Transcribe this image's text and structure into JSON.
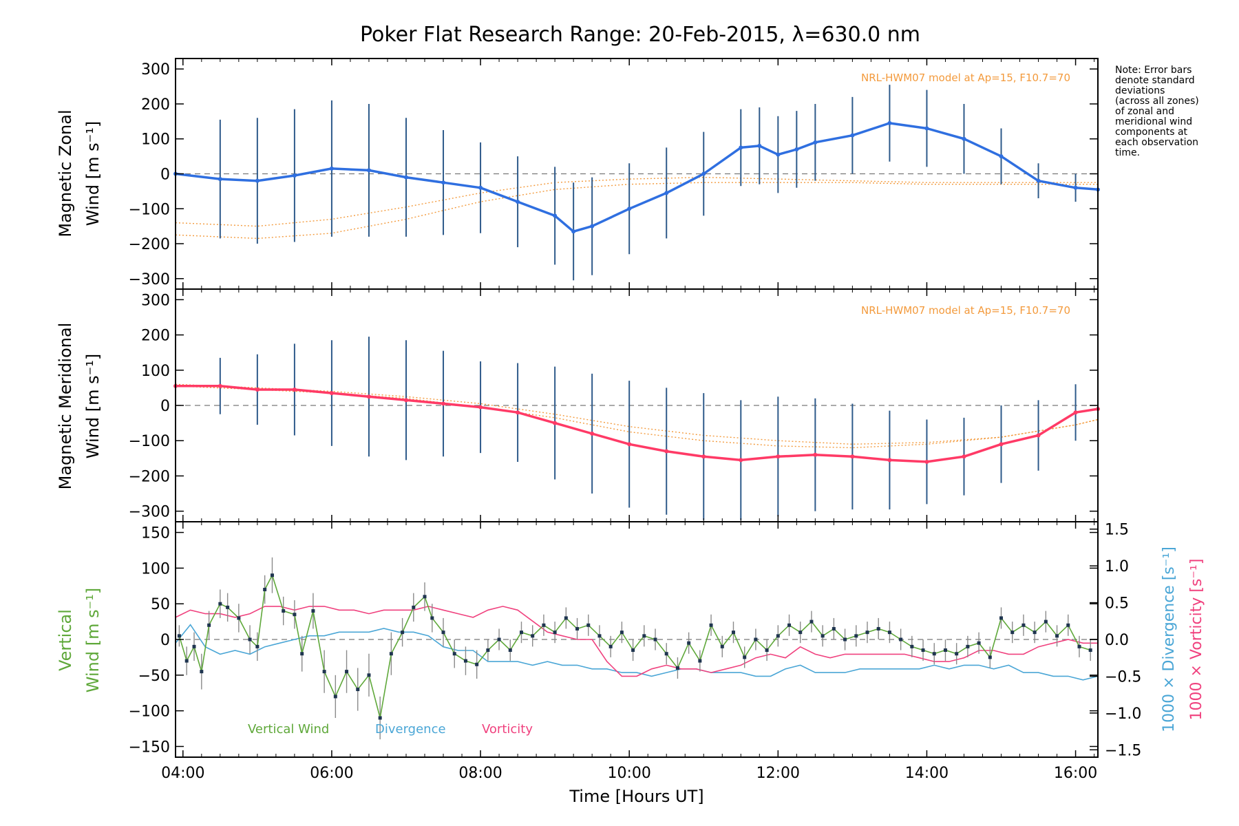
{
  "figure": {
    "title": "Poker Flat Research Range: 20-Feb-2015, λ=630.0 nm",
    "xlabel": "Time [Hours UT]",
    "note_lines": [
      "Note: Error bars",
      "denote standard",
      "deviations",
      "(across all zones)",
      "of zonal and",
      "meridional wind",
      "components at",
      "each observation",
      "time."
    ],
    "colors": {
      "zonal_line": "#2f6fe0",
      "meridional_line": "#ff3a66",
      "vertical": "#5fa83a",
      "divergence": "#4aa6d6",
      "vorticity": "#f0417e",
      "errorbar": "#2e5a8a",
      "model": "#f39a3c",
      "scatter": "#9a9ae0"
    }
  },
  "chart_data": [
    {
      "type": "line",
      "panel": "zonal",
      "ylabel_line1": "Magnetic Zonal",
      "ylabel_line2": "Wind [m s⁻¹]",
      "ylim": [
        -330,
        330
      ],
      "yticks": [
        -300,
        -200,
        -100,
        0,
        100,
        200,
        300
      ],
      "xlim": [
        3.9,
        16.3
      ],
      "xticks": [
        4,
        6,
        8,
        10,
        12,
        14,
        16
      ],
      "xticklabels": [
        "04:00",
        "06:00",
        "08:00",
        "10:00",
        "12:00",
        "14:00",
        "16:00"
      ],
      "model_label": "NRL-HWM07 model at Ap=15, F10.7=70",
      "series": [
        {
          "x": [
            3.9,
            4.5,
            5.0,
            5.5,
            6.0,
            6.5,
            7.0,
            7.5,
            8.0,
            8.5,
            9.0,
            9.25,
            9.5,
            10.0,
            10.5,
            11.0,
            11.5,
            11.75,
            12.0,
            12.25,
            12.5,
            13.0,
            13.5,
            14.0,
            14.5,
            15.0,
            15.5,
            16.0,
            16.3
          ],
          "y": [
            0,
            -15,
            -20,
            -5,
            15,
            10,
            -10,
            -25,
            -40,
            -80,
            -120,
            -165,
            -150,
            -100,
            -55,
            0,
            75,
            80,
            55,
            70,
            90,
            110,
            145,
            130,
            100,
            50,
            -20,
            -40,
            -45
          ],
          "err": [
            150,
            170,
            180,
            190,
            195,
            190,
            170,
            150,
            130,
            130,
            140,
            140,
            140,
            130,
            130,
            120,
            110,
            110,
            110,
            110,
            110,
            110,
            110,
            110,
            100,
            80,
            50,
            40,
            40
          ]
        }
      ],
      "model_curves": [
        {
          "x": [
            3.9,
            5,
            6,
            7,
            8,
            9,
            10,
            11,
            12,
            13,
            14,
            15,
            16,
            16.3
          ],
          "y": [
            -175,
            -185,
            -170,
            -130,
            -80,
            -45,
            -30,
            -25,
            -25,
            -25,
            -30,
            -30,
            -30,
            -30
          ]
        },
        {
          "x": [
            3.9,
            5,
            6,
            7,
            8,
            9,
            10,
            11,
            12,
            13,
            14,
            15,
            16,
            16.3
          ],
          "y": [
            -140,
            -150,
            -130,
            -95,
            -55,
            -25,
            -15,
            -10,
            -15,
            -20,
            -25,
            -25,
            -25,
            -25
          ]
        }
      ]
    },
    {
      "type": "line",
      "panel": "meridional",
      "ylabel_line1": "Magnetic Meridional",
      "ylabel_line2": "Wind [m s⁻¹]",
      "ylim": [
        -330,
        330
      ],
      "yticks": [
        -300,
        -200,
        -100,
        0,
        100,
        200,
        300
      ],
      "model_label": "NRL-HWM07 model at Ap=15, F10.7=70",
      "series": [
        {
          "x": [
            3.9,
            4.5,
            5.0,
            5.5,
            6.0,
            6.5,
            7.0,
            7.5,
            8.0,
            8.5,
            9.0,
            9.5,
            10.0,
            10.5,
            11.0,
            11.5,
            12.0,
            12.5,
            13.0,
            13.5,
            14.0,
            14.5,
            15.0,
            15.5,
            16.0,
            16.3
          ],
          "y": [
            55,
            55,
            45,
            45,
            35,
            25,
            15,
            5,
            -5,
            -20,
            -50,
            -80,
            -110,
            -130,
            -145,
            -155,
            -145,
            -140,
            -145,
            -155,
            -160,
            -145,
            -110,
            -85,
            -20,
            -10
          ],
          "err": [
            70,
            80,
            100,
            130,
            150,
            170,
            170,
            150,
            130,
            140,
            160,
            170,
            180,
            180,
            180,
            170,
            170,
            160,
            150,
            140,
            120,
            110,
            110,
            100,
            80,
            70
          ]
        }
      ],
      "model_curves": [
        {
          "x": [
            3.9,
            5,
            6,
            7,
            8,
            9,
            10,
            11,
            12,
            13,
            14,
            15,
            16,
            16.3
          ],
          "y": [
            60,
            50,
            40,
            25,
            5,
            -25,
            -60,
            -85,
            -100,
            -110,
            -105,
            -90,
            -55,
            -40
          ]
        },
        {
          "x": [
            3.9,
            5,
            6,
            7,
            8,
            9,
            10,
            11,
            12,
            13,
            14,
            15,
            16,
            16.3
          ],
          "y": [
            55,
            45,
            35,
            20,
            -5,
            -35,
            -75,
            -100,
            -115,
            -120,
            -110,
            -90,
            -55,
            -40
          ]
        }
      ]
    },
    {
      "type": "line",
      "panel": "vertical",
      "ylabel_line1": "Vertical",
      "ylabel_line2": "Wind [m s⁻¹]",
      "ylim": [
        -165,
        165
      ],
      "yticks": [
        -150,
        -100,
        -50,
        0,
        50,
        100,
        150
      ],
      "y2label_line1": "1000 × Divergence [s⁻¹]",
      "y2label_line2": "1000 × Vorticity [s⁻¹]",
      "y2lim": [
        -1.6,
        1.6
      ],
      "y2ticks": [
        -1.5,
        -1.0,
        -0.5,
        0.0,
        0.5,
        1.0,
        1.5
      ],
      "y2ticklabels": [
        "−1.5",
        "−1.0",
        "−0.5",
        "0.0",
        "0.5",
        "1.0",
        "1.5"
      ],
      "legend": [
        "Vertical Wind",
        "Divergence",
        "Vorticity"
      ],
      "series": [
        {
          "name": "Vertical Wind",
          "x": [
            3.95,
            4.05,
            4.15,
            4.25,
            4.35,
            4.5,
            4.6,
            4.75,
            4.9,
            5.0,
            5.1,
            5.2,
            5.35,
            5.5,
            5.6,
            5.75,
            5.9,
            6.05,
            6.2,
            6.35,
            6.5,
            6.65,
            6.8,
            6.95,
            7.1,
            7.25,
            7.35,
            7.5,
            7.65,
            7.8,
            7.95,
            8.1,
            8.25,
            8.4,
            8.55,
            8.7,
            8.85,
            9.0,
            9.15,
            9.3,
            9.45,
            9.6,
            9.75,
            9.9,
            10.05,
            10.2,
            10.35,
            10.5,
            10.65,
            10.8,
            10.95,
            11.1,
            11.25,
            11.4,
            11.55,
            11.7,
            11.85,
            12.0,
            12.15,
            12.3,
            12.45,
            12.6,
            12.75,
            12.9,
            13.05,
            13.2,
            13.35,
            13.5,
            13.65,
            13.8,
            13.95,
            14.1,
            14.25,
            14.4,
            14.55,
            14.7,
            14.85,
            15.0,
            15.15,
            15.3,
            15.45,
            15.6,
            15.75,
            15.9,
            16.05,
            16.2
          ],
          "y": [
            5,
            -30,
            -10,
            -45,
            20,
            50,
            45,
            30,
            0,
            -10,
            70,
            90,
            40,
            35,
            -20,
            40,
            -45,
            -80,
            -45,
            -70,
            -50,
            -110,
            -20,
            10,
            45,
            60,
            30,
            10,
            -20,
            -30,
            -35,
            -15,
            0,
            -15,
            10,
            5,
            20,
            10,
            30,
            15,
            20,
            5,
            -10,
            10,
            -15,
            5,
            0,
            -20,
            -40,
            -5,
            -30,
            20,
            -10,
            10,
            -25,
            0,
            -15,
            5,
            20,
            10,
            25,
            5,
            15,
            0,
            5,
            10,
            15,
            10,
            0,
            -10,
            -15,
            -20,
            -15,
            -20,
            -10,
            -5,
            -25,
            30,
            10,
            20,
            10,
            25,
            5,
            20,
            -10,
            -15
          ],
          "err": [
            15,
            20,
            20,
            25,
            20,
            20,
            20,
            20,
            20,
            20,
            20,
            25,
            20,
            20,
            25,
            25,
            30,
            30,
            30,
            30,
            30,
            30,
            30,
            20,
            20,
            20,
            20,
            20,
            20,
            20,
            20,
            15,
            15,
            15,
            15,
            15,
            15,
            15,
            15,
            15,
            15,
            15,
            15,
            15,
            15,
            15,
            15,
            15,
            15,
            15,
            15,
            15,
            15,
            15,
            15,
            15,
            15,
            15,
            15,
            15,
            15,
            15,
            15,
            15,
            15,
            15,
            15,
            15,
            15,
            15,
            15,
            15,
            15,
            15,
            15,
            15,
            15,
            15,
            15,
            15,
            15,
            15,
            15,
            15,
            15,
            15
          ]
        },
        {
          "name": "Divergence",
          "x": [
            3.9,
            4.1,
            4.3,
            4.5,
            4.7,
            4.9,
            5.1,
            5.3,
            5.5,
            5.7,
            5.9,
            6.1,
            6.3,
            6.5,
            6.7,
            6.9,
            7.1,
            7.3,
            7.5,
            7.7,
            7.9,
            8.1,
            8.3,
            8.5,
            8.7,
            8.9,
            9.1,
            9.3,
            9.5,
            9.7,
            9.9,
            10.1,
            10.3,
            10.5,
            10.7,
            10.9,
            11.1,
            11.3,
            11.5,
            11.7,
            11.9,
            12.1,
            12.3,
            12.5,
            12.7,
            12.9,
            13.1,
            13.3,
            13.5,
            13.7,
            13.9,
            14.1,
            14.3,
            14.5,
            14.7,
            14.9,
            15.1,
            15.3,
            15.5,
            15.7,
            15.9,
            16.1,
            16.3
          ],
          "y": [
            -0.05,
            0.2,
            -0.1,
            -0.2,
            -0.15,
            -0.2,
            -0.1,
            -0.05,
            0.0,
            0.05,
            0.05,
            0.1,
            0.1,
            0.1,
            0.15,
            0.1,
            0.1,
            0.05,
            -0.1,
            -0.15,
            -0.15,
            -0.3,
            -0.3,
            -0.3,
            -0.35,
            -0.3,
            -0.35,
            -0.35,
            -0.4,
            -0.4,
            -0.45,
            -0.45,
            -0.5,
            -0.45,
            -0.4,
            -0.4,
            -0.45,
            -0.45,
            -0.45,
            -0.5,
            -0.5,
            -0.4,
            -0.35,
            -0.45,
            -0.45,
            -0.45,
            -0.4,
            -0.4,
            -0.4,
            -0.4,
            -0.4,
            -0.35,
            -0.4,
            -0.35,
            -0.35,
            -0.4,
            -0.35,
            -0.45,
            -0.45,
            -0.5,
            -0.5,
            -0.55,
            -0.5
          ]
        },
        {
          "name": "Vorticity",
          "x": [
            3.9,
            4.1,
            4.3,
            4.5,
            4.7,
            4.9,
            5.1,
            5.3,
            5.5,
            5.7,
            5.9,
            6.1,
            6.3,
            6.5,
            6.7,
            6.9,
            7.1,
            7.3,
            7.5,
            7.7,
            7.9,
            8.1,
            8.3,
            8.5,
            8.7,
            8.9,
            9.1,
            9.3,
            9.5,
            9.7,
            9.9,
            10.1,
            10.3,
            10.5,
            10.7,
            10.9,
            11.1,
            11.3,
            11.5,
            11.7,
            11.9,
            12.1,
            12.3,
            12.5,
            12.7,
            12.9,
            13.1,
            13.3,
            13.5,
            13.7,
            13.9,
            14.1,
            14.3,
            14.5,
            14.7,
            14.9,
            15.1,
            15.3,
            15.5,
            15.7,
            15.9,
            16.1,
            16.3
          ],
          "y": [
            0.3,
            0.4,
            0.35,
            0.35,
            0.3,
            0.35,
            0.45,
            0.45,
            0.4,
            0.45,
            0.45,
            0.4,
            0.4,
            0.35,
            0.4,
            0.4,
            0.4,
            0.45,
            0.4,
            0.35,
            0.3,
            0.4,
            0.45,
            0.4,
            0.25,
            0.1,
            0.05,
            0.0,
            0.0,
            -0.3,
            -0.5,
            -0.5,
            -0.4,
            -0.35,
            -0.4,
            -0.4,
            -0.45,
            -0.4,
            -0.35,
            -0.25,
            -0.2,
            -0.25,
            -0.1,
            -0.2,
            -0.25,
            -0.2,
            -0.2,
            -0.2,
            -0.2,
            -0.2,
            -0.25,
            -0.3,
            -0.3,
            -0.25,
            -0.15,
            -0.15,
            -0.2,
            -0.2,
            -0.1,
            -0.05,
            0.0,
            -0.05,
            -0.05
          ]
        }
      ]
    }
  ]
}
